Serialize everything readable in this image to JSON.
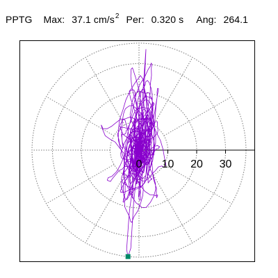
{
  "header": {
    "station": "PPTG",
    "max_label": "Max:",
    "max_value": "37.1 cm/s",
    "max_exp": "2",
    "per_label": "Per:",
    "per_value": "0.320 s",
    "ang_label": "Ang:",
    "ang_value": "264.1"
  },
  "colors": {
    "trace": "#8800cc",
    "marker": "#008866",
    "grid": "#777777",
    "axis": "#000000",
    "frame": "#000000"
  },
  "chart_data": {
    "type": "polar-hodogram",
    "title": "",
    "ring_values": [
      10,
      20,
      30
    ],
    "max_radius": 37.1,
    "ring_labels": [
      "0",
      "10",
      "20",
      "30"
    ],
    "spoke_step_deg": 30,
    "grid": true,
    "peak": {
      "magnitude": 37.1,
      "angle_deg": 264.1,
      "units": "cm/s2"
    },
    "trace_units": "cm/s2"
  }
}
